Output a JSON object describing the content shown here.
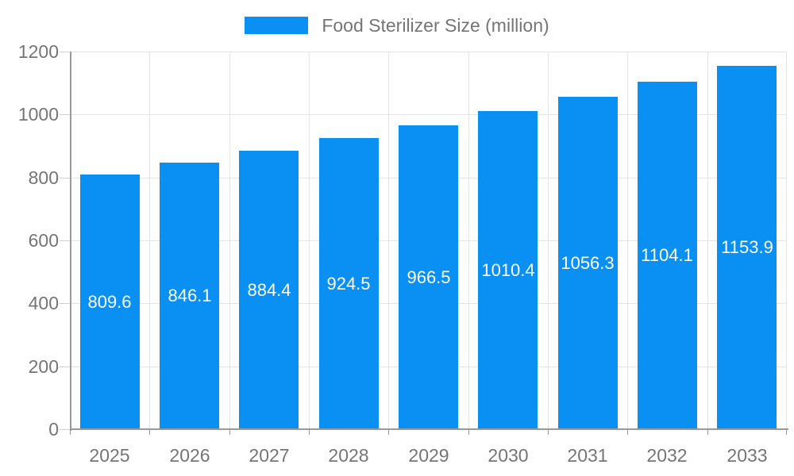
{
  "legend": {
    "label": "Food Sterilizer Size (million)"
  },
  "colors": {
    "bar": "#0a8ff2",
    "grid": "#e4e4e4",
    "tick": "#cfcfcf",
    "axis_line": "#999999",
    "axis_text": "#757575",
    "legend_text": "#757575",
    "bar_label_text": "#ffffff"
  },
  "chart_data": {
    "type": "bar",
    "title": "Food Sterilizer Size (million)",
    "series_name": "Food Sterilizer Size (million)",
    "categories": [
      "2025",
      "2026",
      "2027",
      "2028",
      "2029",
      "2030",
      "2031",
      "2032",
      "2033"
    ],
    "values": [
      809.6,
      846.1,
      884.4,
      924.5,
      966.5,
      1010.4,
      1056.3,
      1104.1,
      1153.9
    ],
    "bar_labels": [
      "809.6",
      "846.1",
      "884.4",
      "924.5",
      "966.5",
      "1010.4",
      "1056.3",
      "1104.1",
      "1153.9"
    ],
    "xlabel": "",
    "ylabel": "",
    "ylim": [
      0,
      1200
    ],
    "yticks": [
      0,
      200,
      400,
      600,
      800,
      1000,
      1200
    ],
    "grid": true,
    "legend_position": "top",
    "bar_labels_visible": true,
    "bar_label_position": "inside-middle"
  }
}
